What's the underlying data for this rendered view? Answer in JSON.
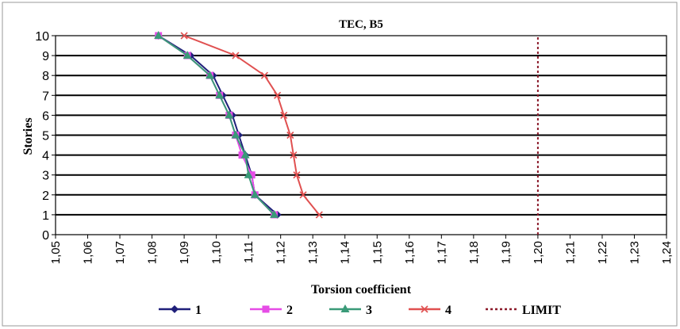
{
  "chart_data": {
    "type": "line",
    "title": "TEC, B5",
    "xlabel": "Torsion coefficient",
    "ylabel": "Stories",
    "xlim": [
      1.05,
      1.24
    ],
    "ylim": [
      0,
      10
    ],
    "x_ticks": [
      "1,05",
      "1,06",
      "1,07",
      "1,08",
      "1,09",
      "1,10",
      "1,11",
      "1,12",
      "1,13",
      "1,14",
      "1,15",
      "1,16",
      "1,17",
      "1,18",
      "1,19",
      "1,20",
      "1,21",
      "1,22",
      "1,23",
      "1,24"
    ],
    "y_ticks": [
      "0",
      "1",
      "2",
      "3",
      "4",
      "5",
      "6",
      "7",
      "8",
      "9",
      "10"
    ],
    "grid": "horizontal",
    "legend_position": "bottom",
    "series": [
      {
        "name": "1",
        "color": "#1f1f7a",
        "marker": "diamond",
        "points": [
          [
            1.082,
            10
          ],
          [
            1.092,
            9
          ],
          [
            1.099,
            8
          ],
          [
            1.102,
            7
          ],
          [
            1.105,
            6
          ],
          [
            1.107,
            5
          ],
          [
            1.109,
            4
          ],
          [
            1.111,
            3
          ],
          [
            1.112,
            2
          ],
          [
            1.119,
            1
          ]
        ]
      },
      {
        "name": "2",
        "color": "#e64ce6",
        "marker": "square",
        "points": [
          [
            1.082,
            10
          ],
          [
            1.091,
            9
          ],
          [
            1.098,
            8
          ],
          [
            1.101,
            7
          ],
          [
            1.104,
            6
          ],
          [
            1.106,
            5
          ],
          [
            1.108,
            4
          ],
          [
            1.111,
            3
          ],
          [
            1.112,
            2
          ],
          [
            1.118,
            1
          ]
        ]
      },
      {
        "name": "3",
        "color": "#3a9a78",
        "marker": "triangle",
        "points": [
          [
            1.082,
            10
          ],
          [
            1.091,
            9
          ],
          [
            1.098,
            8
          ],
          [
            1.101,
            7
          ],
          [
            1.104,
            6
          ],
          [
            1.106,
            5
          ],
          [
            1.109,
            4
          ],
          [
            1.11,
            3
          ],
          [
            1.112,
            2
          ],
          [
            1.118,
            1
          ]
        ]
      },
      {
        "name": "4",
        "color": "#e05050",
        "marker": "x",
        "points": [
          [
            1.09,
            10
          ],
          [
            1.106,
            9
          ],
          [
            1.115,
            8
          ],
          [
            1.119,
            7
          ],
          [
            1.121,
            6
          ],
          [
            1.123,
            5
          ],
          [
            1.124,
            4
          ],
          [
            1.125,
            3
          ],
          [
            1.127,
            2
          ],
          [
            1.132,
            1
          ]
        ]
      },
      {
        "name": "LIMIT",
        "color": "#8b1a2a",
        "marker": "none",
        "dashed": true,
        "points": [
          [
            1.2,
            0
          ],
          [
            1.2,
            10
          ]
        ]
      }
    ]
  }
}
